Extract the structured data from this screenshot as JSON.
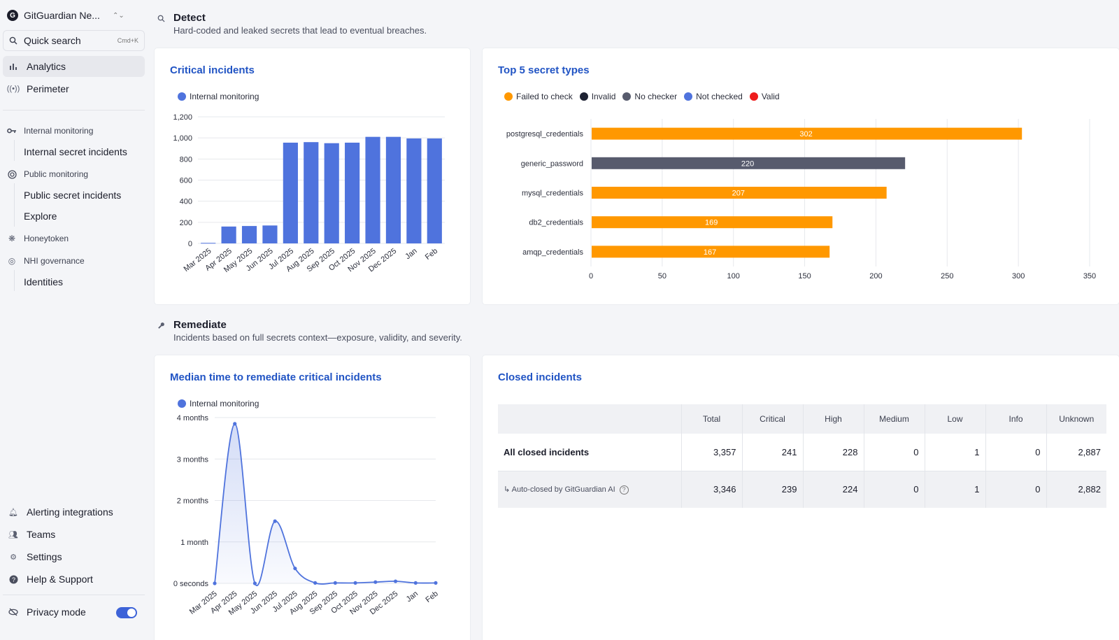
{
  "sidebar": {
    "workspace": {
      "logo_letter": "G",
      "name": "GitGuardian Ne..."
    },
    "search": {
      "label": "Quick search",
      "shortcut": "Cmd+K"
    },
    "nav": {
      "analytics": "Analytics",
      "perimeter": "Perimeter"
    },
    "internal_monitoring": {
      "label": "Internal monitoring",
      "incidents": "Internal secret incidents"
    },
    "public_monitoring": {
      "label": "Public monitoring",
      "incidents": "Public secret incidents",
      "explore": "Explore"
    },
    "honeytoken": "Honeytoken",
    "nhi": {
      "label": "NHI governance",
      "identities": "Identities"
    },
    "bottom": {
      "alerting": "Alerting integrations",
      "teams": "Teams",
      "settings": "Settings",
      "help": "Help & Support",
      "privacy": "Privacy mode"
    }
  },
  "detect": {
    "title": "Detect",
    "description": "Hard-coded and leaked secrets that lead to eventual breaches."
  },
  "remediate": {
    "title": "Remediate",
    "description": "Incidents based on full secrets context—exposure, validity, and severity."
  },
  "cards": {
    "critical_title": "Critical incidents",
    "top5_title": "Top 5 secret types",
    "mttr_title": "Median time to remediate critical incidents",
    "closed_title": "Closed incidents"
  },
  "chart_data": [
    {
      "type": "bar",
      "title": "Critical incidents",
      "legend": [
        "Internal monitoring"
      ],
      "categories": [
        "Mar 2025",
        "Apr 2025",
        "May 2025",
        "Jun 2025",
        "Jul 2025",
        "Aug 2025",
        "Sep 2025",
        "Oct 2025",
        "Nov 2025",
        "Dec 2025",
        "Jan",
        "Feb"
      ],
      "series": [
        {
          "name": "Internal monitoring",
          "color": "#4f73dd",
          "values": [
            5,
            160,
            165,
            170,
            955,
            960,
            950,
            955,
            1010,
            1010,
            995,
            995
          ]
        }
      ],
      "ylim": [
        0,
        1200
      ],
      "yticks": [
        0,
        200,
        400,
        600,
        800,
        1000,
        1200
      ],
      "ytick_labels": [
        "0",
        "200",
        "400",
        "600",
        "800",
        "1,000",
        "1,200"
      ]
    },
    {
      "type": "bar",
      "orientation": "horizontal",
      "title": "Top 5 secret types",
      "legend": [
        {
          "name": "Failed to check",
          "color": "#ff9800"
        },
        {
          "name": "Invalid",
          "color": "#1e2233"
        },
        {
          "name": "No checker",
          "color": "#575b6d"
        },
        {
          "name": "Not checked",
          "color": "#4f73dd"
        },
        {
          "name": "Valid",
          "color": "#ee1c1c"
        }
      ],
      "categories": [
        "postgresql_credentials",
        "generic_password",
        "mysql_credentials",
        "db2_credentials",
        "amqp_credentials"
      ],
      "values": [
        302,
        220,
        207,
        169,
        167
      ],
      "bar_colors": [
        "#ff9800",
        "#575b6d",
        "#ff9800",
        "#ff9800",
        "#ff9800"
      ],
      "xlim": [
        0,
        350
      ],
      "xticks": [
        0,
        50,
        100,
        150,
        200,
        250,
        300,
        350
      ]
    },
    {
      "type": "area",
      "title": "Median time to remediate critical incidents",
      "legend": [
        "Internal monitoring"
      ],
      "categories": [
        "Mar 2025",
        "Apr 2025",
        "May 2025",
        "Jun 2025",
        "Jul 2025",
        "Aug 2025",
        "Sep 2025",
        "Oct 2025",
        "Nov 2025",
        "Dec 2025",
        "Jan",
        "Feb"
      ],
      "series": [
        {
          "name": "Internal monitoring",
          "color": "#4f73dd",
          "values_months": [
            0,
            3.85,
            0,
            1.5,
            0.36,
            0.01,
            0.01,
            0.01,
            0.03,
            0.05,
            0.01,
            0.01
          ]
        }
      ],
      "ylim": [
        0,
        4
      ],
      "yticks": [
        0,
        1,
        2,
        3,
        4
      ],
      "ytick_labels": [
        "0 seconds",
        "1 month",
        "2 months",
        "3 months",
        "4 months"
      ]
    }
  ],
  "closed_table": {
    "headers": [
      "",
      "Total",
      "Critical",
      "High",
      "Medium",
      "Low",
      "Info",
      "Unknown"
    ],
    "rows": [
      [
        "All closed incidents",
        "3,357",
        "241",
        "228",
        "0",
        "1",
        "0",
        "2,887"
      ],
      [
        "↳  Auto-closed by GitGuardian AI",
        "3,346",
        "239",
        "224",
        "0",
        "1",
        "0",
        "2,882"
      ]
    ],
    "help_glyph": "?"
  }
}
